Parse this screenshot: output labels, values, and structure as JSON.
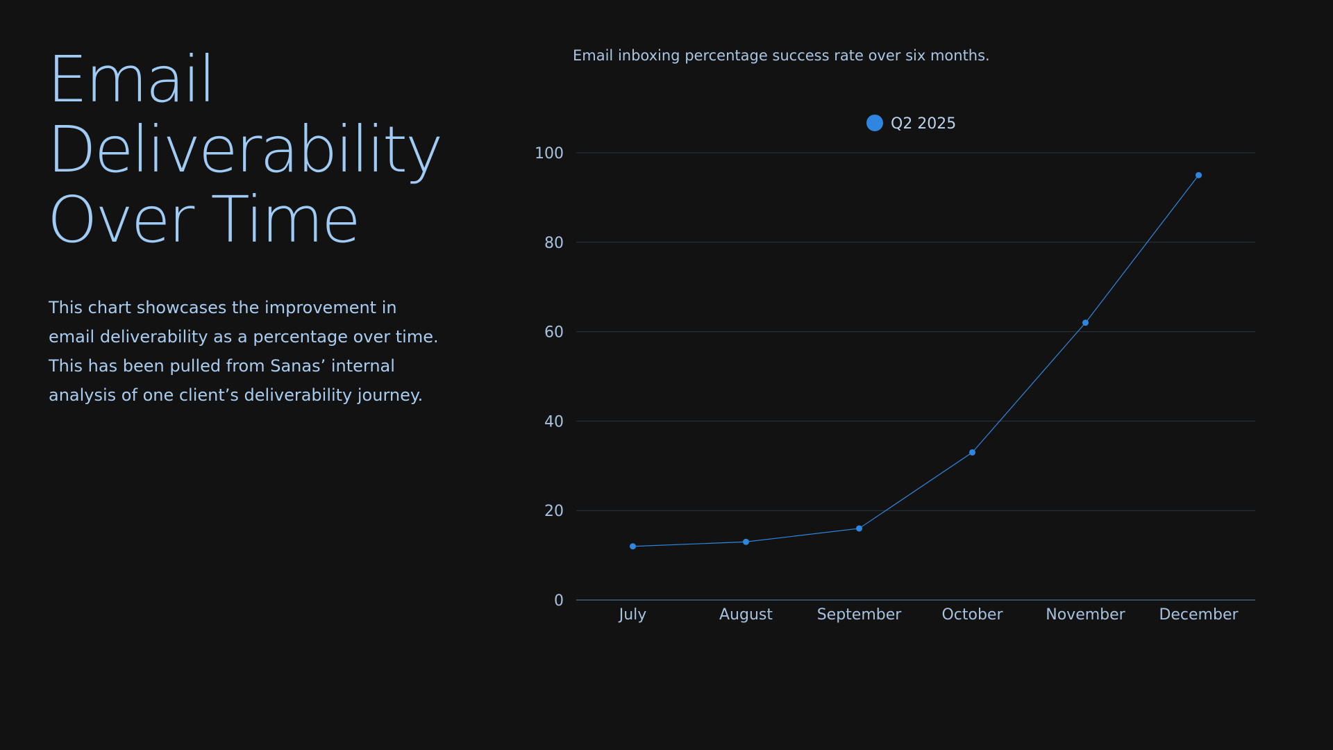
{
  "page": {
    "title_lines": [
      "Email",
      "Deliverability",
      "Over Time"
    ],
    "description_lines": [
      "This chart showcases the improvement in",
      "email deliverability as a percentage over time.",
      "This has been pulled from Sanas’ internal",
      "analysis of one client’s deliverability journey."
    ]
  },
  "colors": {
    "background": "#121212",
    "title": "#9fcbf5",
    "series": "#2f86e0",
    "grid": "#2a3440",
    "axis": "#3f5f80"
  },
  "chart_data": {
    "type": "line",
    "title": "Email inboxing percentage success rate over six months.",
    "categories": [
      "July",
      "August",
      "September",
      "October",
      "November",
      "December"
    ],
    "series": [
      {
        "name": "Q2 2025",
        "values": [
          12,
          13,
          16,
          33,
          62,
          95
        ]
      }
    ],
    "ylim": [
      0,
      100
    ],
    "yticks": [
      0,
      20,
      40,
      60,
      80,
      100
    ],
    "xlabel": "",
    "ylabel": "",
    "grid": true,
    "legend": "top-center"
  }
}
